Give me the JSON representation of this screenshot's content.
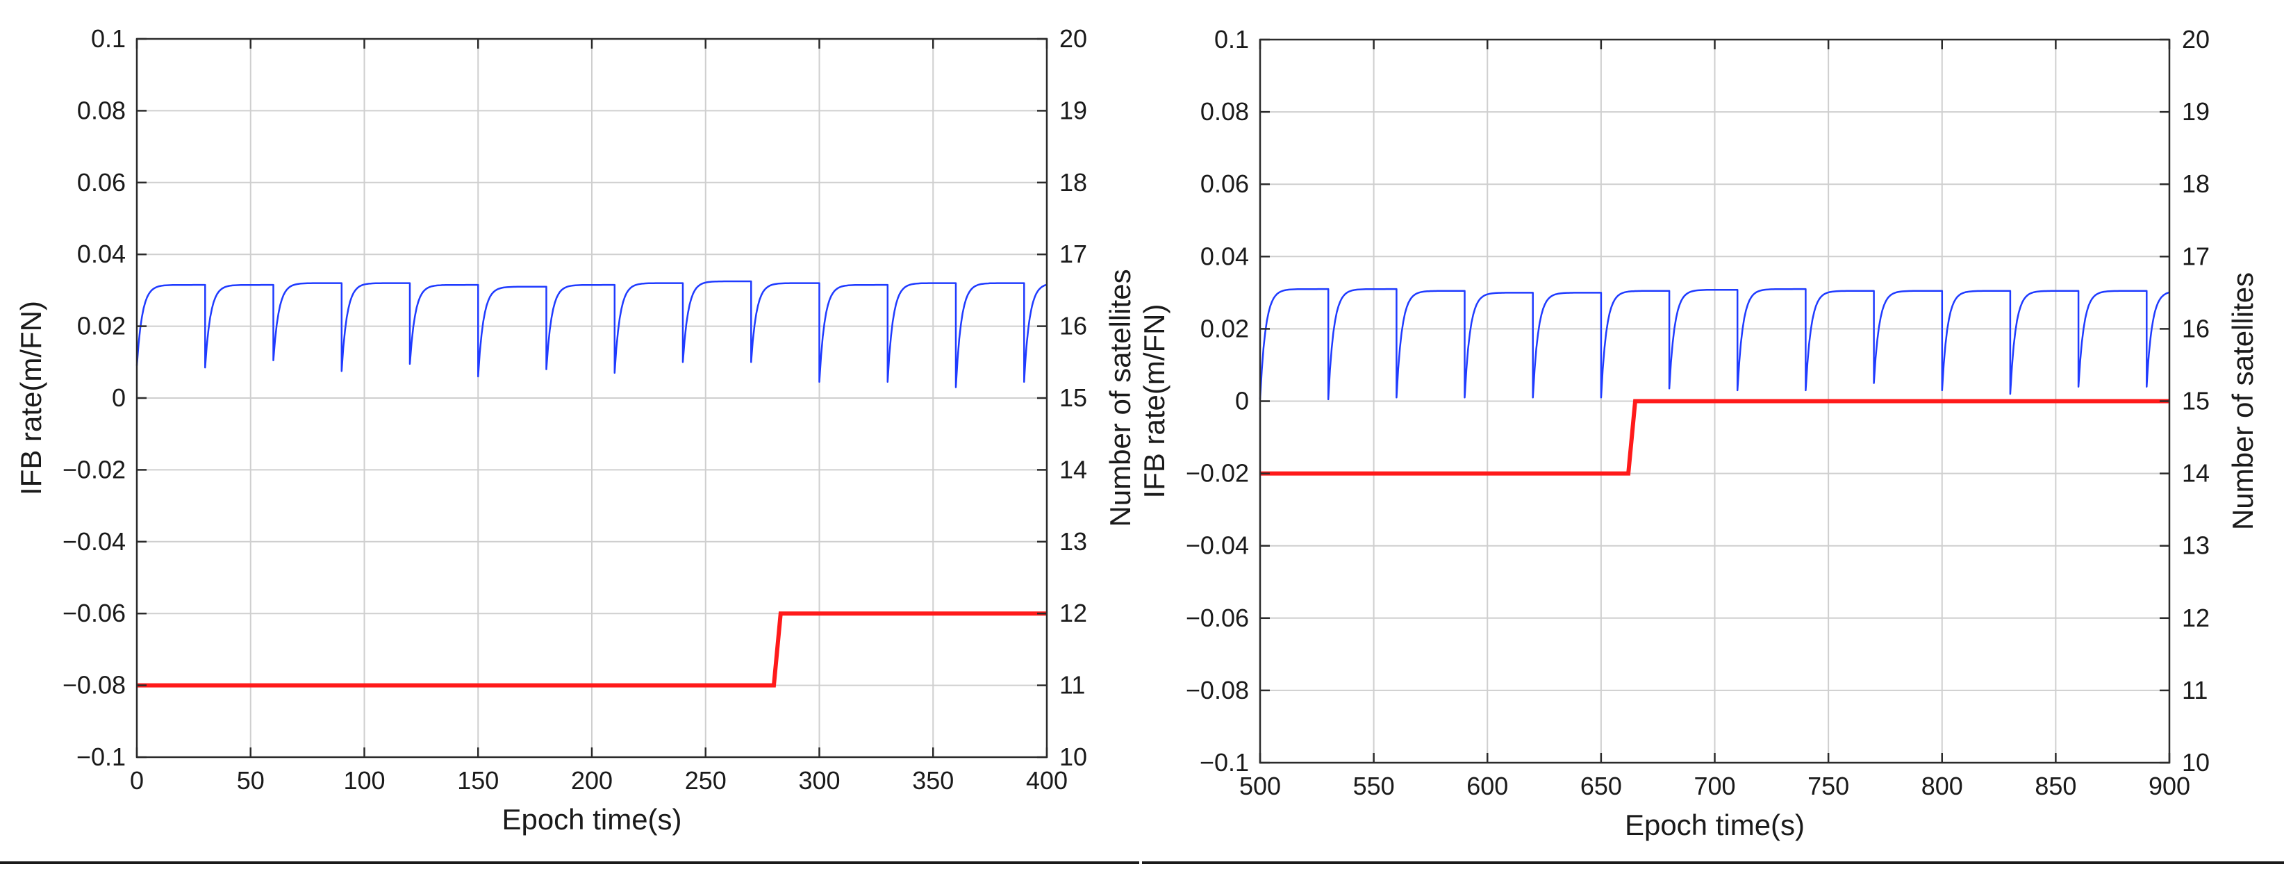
{
  "chart_data": [
    {
      "type": "line",
      "xlabel": "Epoch time(s)",
      "ylabel_left": "IFB rate(m/FN)",
      "ylabel_right": "Number of satellites",
      "xlim": [
        0,
        400
      ],
      "ylim_left": [
        -0.1,
        0.1
      ],
      "ylim_right": [
        10,
        20
      ],
      "grid": true,
      "x_ticks": [
        "0",
        "50",
        "100",
        "150",
        "200",
        "250",
        "300",
        "350",
        "400"
      ],
      "y_left_ticks": [
        "0.1",
        "0.08",
        "0.06",
        "0.04",
        "0.02",
        "0",
        "−0.02",
        "−0.04",
        "−0.06",
        "−0.08",
        "−0.1"
      ],
      "y_right_ticks": [
        "20",
        "19",
        "18",
        "17",
        "16",
        "15",
        "14",
        "13",
        "12",
        "11",
        "10"
      ],
      "series": [
        {
          "axis": "left",
          "color": "#1f3bff",
          "style": "sawtooth",
          "start_value": 0.009,
          "plateau": [
            0.0315,
            0.0315,
            0.032,
            0.032,
            0.0315,
            0.031,
            0.0315,
            0.032,
            0.0325,
            0.032,
            0.0315,
            0.032,
            0.032,
            0.032
          ],
          "dip_x": [
            30,
            60,
            90,
            120,
            150,
            180,
            210,
            240,
            270,
            300,
            330,
            360,
            390
          ],
          "dip_values": [
            0.0085,
            0.0105,
            0.0075,
            0.0095,
            0.006,
            0.008,
            0.007,
            0.01,
            0.01,
            0.0045,
            0.0045,
            0.003,
            0.0045
          ]
        },
        {
          "axis": "right",
          "color": "#ff1a1a",
          "style": "step",
          "steps": [
            {
              "x": 0,
              "y": 11
            },
            {
              "x": 280,
              "y": 11
            },
            {
              "x": 283,
              "y": 12
            },
            {
              "x": 400,
              "y": 12
            }
          ]
        }
      ]
    },
    {
      "type": "line",
      "xlabel": "Epoch time(s)",
      "ylabel_left": "IFB rate(m/FN)",
      "ylabel_right": "Number of satellites",
      "xlim": [
        500,
        900
      ],
      "ylim_left": [
        -0.1,
        0.1
      ],
      "ylim_right": [
        10,
        20
      ],
      "grid": true,
      "x_ticks": [
        "500",
        "550",
        "600",
        "650",
        "700",
        "750",
        "800",
        "850",
        "900"
      ],
      "y_left_ticks": [
        "0.1",
        "0.08",
        "0.06",
        "0.04",
        "0.02",
        "0",
        "−0.02",
        "−0.04",
        "−0.06",
        "−0.08",
        "−0.1"
      ],
      "y_right_ticks": [
        "20",
        "19",
        "18",
        "17",
        "16",
        "15",
        "14",
        "13",
        "12",
        "11",
        "10"
      ],
      "series": [
        {
          "axis": "left",
          "color": "#1f3bff",
          "style": "sawtooth",
          "start_value": 0.0005,
          "plateau": [
            0.031,
            0.031,
            0.0305,
            0.03,
            0.03,
            0.0305,
            0.0308,
            0.031,
            0.0305,
            0.0305,
            0.0305,
            0.0305,
            0.0305,
            0.0305
          ],
          "dip_x": [
            530,
            560,
            590,
            620,
            650,
            680,
            710,
            740,
            770,
            800,
            830,
            860,
            890
          ],
          "dip_values": [
            0.0005,
            0.001,
            0.001,
            0.001,
            0.001,
            0.0035,
            0.003,
            0.003,
            0.005,
            0.003,
            0.002,
            0.004,
            0.004
          ]
        },
        {
          "axis": "right",
          "color": "#ff1a1a",
          "style": "step",
          "steps": [
            {
              "x": 500,
              "y": 14
            },
            {
              "x": 662,
              "y": 14
            },
            {
              "x": 665,
              "y": 15
            },
            {
              "x": 900,
              "y": 15
            }
          ]
        }
      ]
    }
  ]
}
